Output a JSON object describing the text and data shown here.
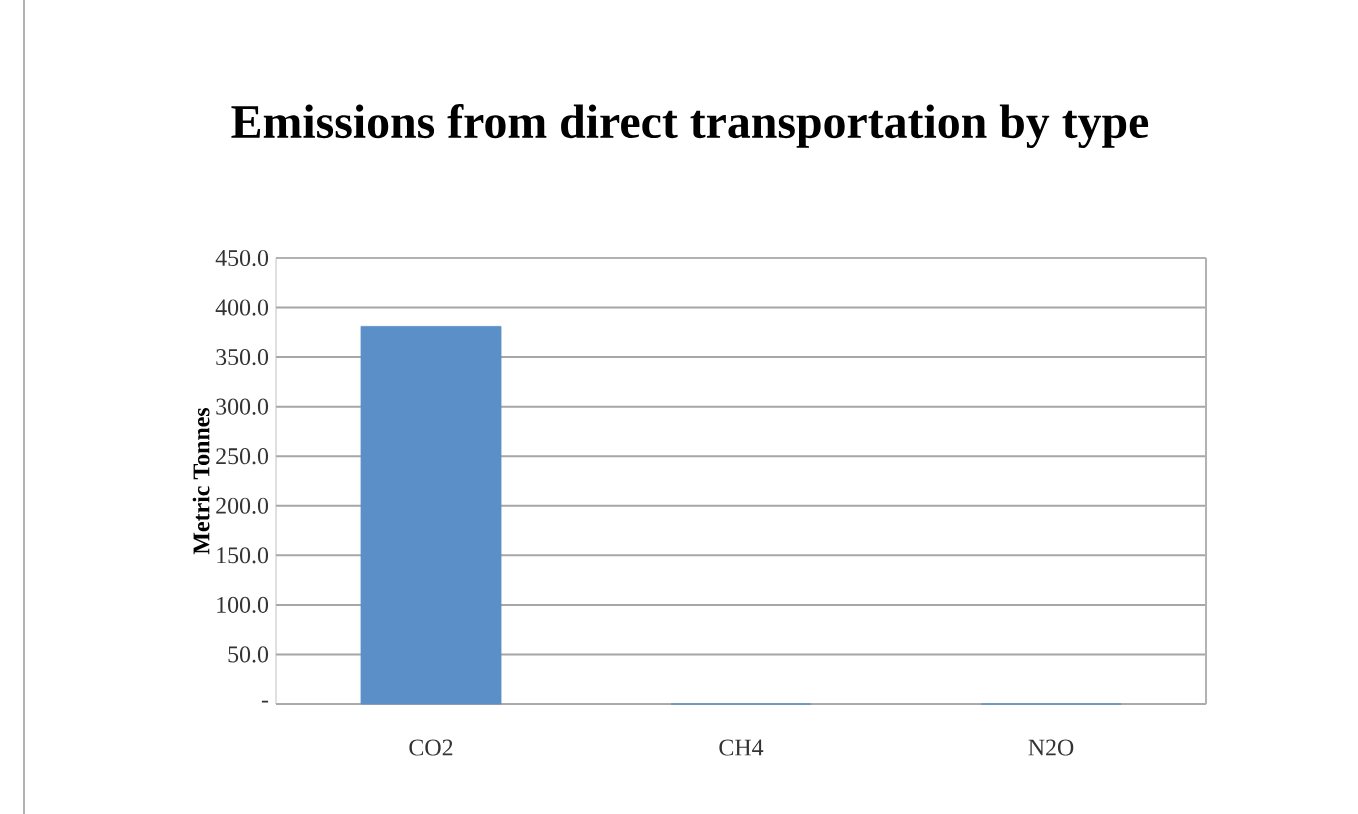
{
  "chart_data": {
    "type": "bar",
    "title": "Emissions from direct transportation by type",
    "ylabel": "Metric Tonnes",
    "categories": [
      "CO2",
      "CH4",
      "N2O"
    ],
    "values": [
      381,
      0,
      0
    ],
    "color": "#5b8fc7",
    "ylim": [
      0,
      450
    ],
    "yticks": [
      {
        "value": 0,
        "label": "-"
      },
      {
        "value": 50,
        "label": "50.0"
      },
      {
        "value": 100,
        "label": "100.0"
      },
      {
        "value": 150,
        "label": "150.0"
      },
      {
        "value": 200,
        "label": "200.0"
      },
      {
        "value": 250,
        "label": "250.0"
      },
      {
        "value": 300,
        "label": "300.0"
      },
      {
        "value": 350,
        "label": "350.0"
      },
      {
        "value": 400,
        "label": "400.0"
      },
      {
        "value": 450,
        "label": "450.0"
      }
    ],
    "grid": "y"
  }
}
